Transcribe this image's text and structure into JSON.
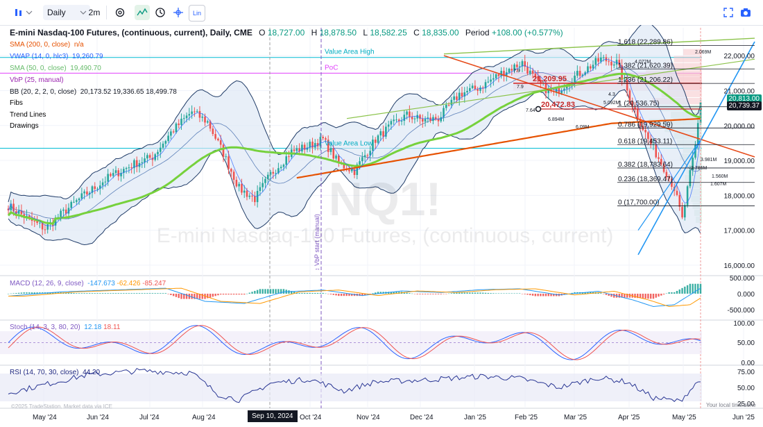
{
  "toolbar": {
    "interval_label": "Daily",
    "range_label": "2m",
    "log_label": "Lin"
  },
  "header": {
    "symbol_title": "E-mini Nasdaq-100 Futures, (continuous, current), Daily, CME",
    "open_label": "O",
    "open": "18,727.00",
    "high_label": "H",
    "high": "18,878.50",
    "low_label": "L",
    "low": "18,582.25",
    "close_label": "C",
    "close": "18,835.00",
    "period_label": "Period",
    "period": "+108.00 (+0.577%)"
  },
  "legend": [
    {
      "label": "SMA (200, 0, close)",
      "value": "n/a",
      "color": "#e65100"
    },
    {
      "label": "VWAP (14, 0, hlc3)",
      "value": "19,260.79",
      "color": "#2962ff"
    },
    {
      "label": "SMA (50, 0, close)",
      "value": "19,490.70",
      "color": "#66bb6a"
    },
    {
      "label": "VbP (25, manual)",
      "value": "",
      "color": "#9c27b0"
    },
    {
      "label": "BB (20, 2, 2, 0, close)",
      "value": "20,173.52 19,336.65 18,499.78",
      "color": "#131722"
    },
    {
      "label": "Fibs",
      "value": "",
      "color": "#131722"
    },
    {
      "label": "Trend Lines",
      "value": "",
      "color": "#131722"
    },
    {
      "label": "Drawings",
      "value": "",
      "color": "#131722"
    }
  ],
  "watermark": {
    "ticker": "NQ1!",
    "name": "E-mini Nasdaq-100 Futures, (continuous, current)"
  },
  "annotations": {
    "value_area_high": "Value Area High",
    "poc": "PoC",
    "value_area_low": "Value Area Low",
    "vbp_start": "↕ VbP start (manual)",
    "line_level_1": "21,209.95",
    "line_level_2": "20,472.83",
    "fib_levels": [
      "1.618 (22,289.86)",
      "1.382 (21,620.39)",
      "1.236 (21,206.22)",
      "1 (20,536.75)",
      "0.786 (19,929.59)",
      "0.618 (19,453.11)",
      "0.382 (18,783.64)",
      "0.236 (18,369.47)",
      "0 (17,700.00)"
    ],
    "volume_labels": [
      "2.069M",
      "4.072M",
      "5.092M",
      "6.894M",
      "6.09M",
      "3.981M",
      "2.786M",
      "1.560M",
      "1.607M",
      "7.64",
      "7.9",
      "7.9",
      "4.3"
    ]
  },
  "price_axis": {
    "ticks": [
      "22,000.00",
      "21,000.00",
      "20,000.00",
      "19,000.00",
      "18,000.00",
      "17,000.00",
      "16,000.00"
    ],
    "tag_top": "20,813.00",
    "tag_current": "20,739.37"
  },
  "macd": {
    "label": "MACD (12, 26, 9, close)",
    "v1": "-147.673",
    "v2": "-62.426",
    "v3": "-85.247",
    "ticks": [
      "500.000",
      "0.000",
      "-500.000"
    ]
  },
  "stoch": {
    "label": "Stoch (14, 3, 3, 80, 20)",
    "v1": "12.18",
    "v2": "18.11",
    "ticks": [
      "100.00",
      "50.00",
      "0.00"
    ]
  },
  "rsi": {
    "label": "RSI (14, 70, 30, close)",
    "v1": "44.20",
    "ticks": [
      "75.00",
      "50.00",
      "25.00"
    ]
  },
  "footer": {
    "copyright": "©2025 TradeStation. Market data via ICE",
    "local_time": "Your local time zone"
  },
  "time_axis": {
    "labels": [
      "May '24",
      "Jun '24",
      "Jul '24",
      "Aug '24",
      "Sep 10, 2024",
      "Oct '24",
      "Nov '24",
      "Dec '24",
      "Jan '25",
      "Feb '25",
      "Mar '25",
      "Apr '25",
      "May '25",
      "Jun '25"
    ]
  },
  "colors": {
    "up": "#26a69a",
    "down": "#ef5350",
    "sma200": "#e65100",
    "sma50": "#76d13c",
    "vwap": "#2962ff",
    "bb": "#1e3a66",
    "macd_line": "#2196f3",
    "signal_line": "#ff9800"
  },
  "chart_data": {
    "type": "line",
    "title": "E-mini Nasdaq-100 Futures, (continuous, current), Daily, CME",
    "xlabel": "",
    "ylabel": "",
    "ylim": [
      16000,
      22500
    ],
    "x": [
      "May '24",
      "Jun '24",
      "Jul '24",
      "Aug '24",
      "Sep '24",
      "Oct '24",
      "Nov '24",
      "Dec '24",
      "Jan '25",
      "Feb '25",
      "Mar '25",
      "Apr '25",
      "May '25"
    ],
    "series": [
      {
        "name": "NQ1! close (approx)",
        "values": [
          18000,
          18950,
          20400,
          19000,
          19800,
          20300,
          20600,
          21600,
          21100,
          21900,
          19600,
          18300,
          20700
        ]
      },
      {
        "name": "SMA (50, 0, close)",
        "values": [
          17700,
          17900,
          18400,
          19400,
          19300,
          19700,
          20000,
          20600,
          21200,
          21500,
          20700,
          19700,
          19490
        ]
      },
      {
        "name": "SMA (200, 0, close)",
        "values": [
          null,
          null,
          null,
          null,
          null,
          19000,
          19400,
          19800,
          20200,
          20450,
          20600,
          20550,
          20500
        ]
      }
    ],
    "fib_retracement": [
      {
        "ratio": 1.618,
        "value": 22289.86
      },
      {
        "ratio": 1.382,
        "value": 21620.39
      },
      {
        "ratio": 1.236,
        "value": 21206.22
      },
      {
        "ratio": 1,
        "value": 20536.75
      },
      {
        "ratio": 0.786,
        "value": 19929.59
      },
      {
        "ratio": 0.618,
        "value": 19453.11
      },
      {
        "ratio": 0.382,
        "value": 18783.64
      },
      {
        "ratio": 0.236,
        "value": 18369.47
      },
      {
        "ratio": 0,
        "value": 17700.0
      }
    ]
  }
}
